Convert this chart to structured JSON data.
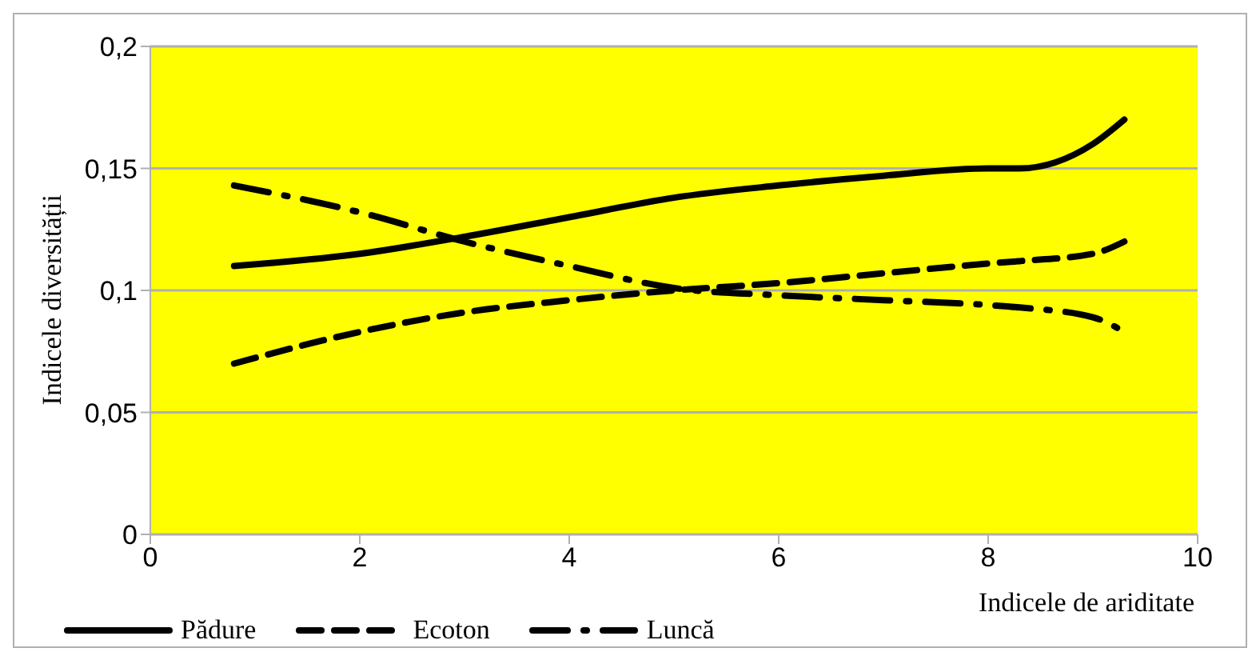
{
  "chart_data": {
    "type": "line",
    "xlabel": "Indicele de ariditate",
    "ylabel": "Indicele diversității",
    "xlim": [
      0,
      10
    ],
    "xticks": [
      0,
      2,
      4,
      6,
      8,
      10
    ],
    "ylim": [
      0,
      0.2
    ],
    "yticks": [
      {
        "value": 0,
        "label": "0"
      },
      {
        "value": 0.05,
        "label": "0,05"
      },
      {
        "value": 0.1,
        "label": "0,1"
      },
      {
        "value": 0.15,
        "label": "0,15"
      },
      {
        "value": 0.2,
        "label": "0,2"
      }
    ],
    "grid": "y",
    "legend": "bottom",
    "marker": "none",
    "x": [
      0.8,
      2,
      3,
      4,
      5,
      6,
      7,
      8,
      8.3,
      9,
      9.3
    ],
    "series": [
      {
        "name": "Pădure",
        "color": "#000000",
        "line_style": "solid",
        "values": [
          0.11,
          0.115,
          0.122,
          0.13,
          0.138,
          0.143,
          0.147,
          0.15,
          0.15,
          0.16,
          0.17
        ]
      },
      {
        "name": "Ecoton",
        "color": "#000000",
        "line_style": "dashed",
        "values": [
          0.07,
          0.083,
          0.091,
          0.096,
          0.1,
          0.103,
          0.107,
          0.111,
          0.112,
          0.115,
          0.12
        ]
      },
      {
        "name": "Luncă",
        "color": "#000000",
        "line_style": "dashdot",
        "values": [
          0.143,
          0.132,
          0.12,
          0.11,
          0.101,
          0.098,
          0.096,
          0.094,
          0.093,
          0.089,
          0.083
        ]
      }
    ]
  }
}
